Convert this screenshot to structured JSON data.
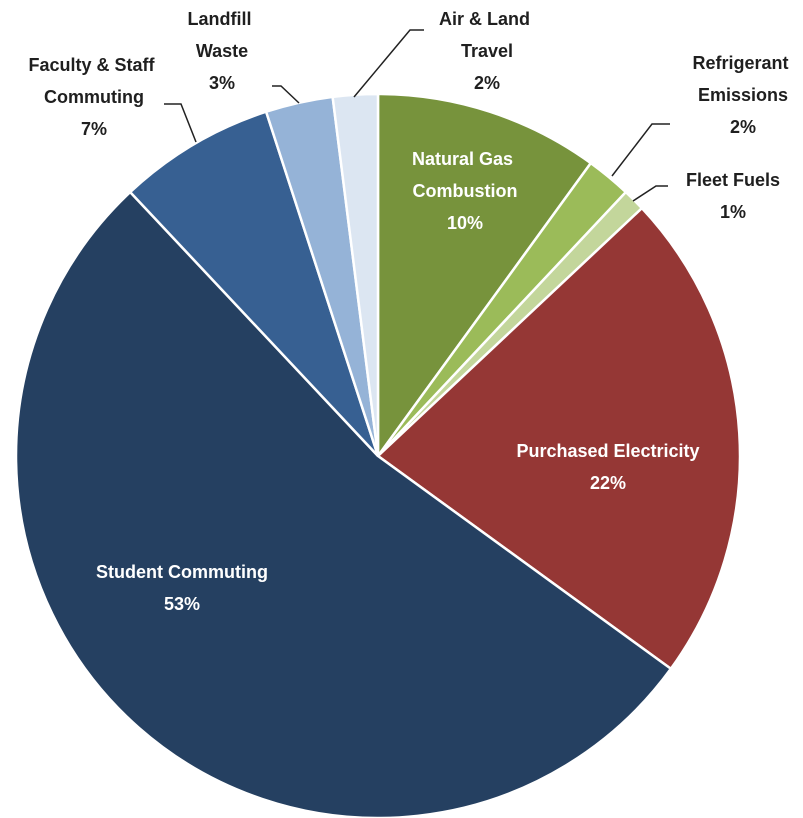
{
  "chart_data": {
    "type": "pie",
    "categories": [
      "Natural Gas Combustion",
      "Refrigerant Emissions",
      "Fleet Fuels",
      "Purchased Electricity",
      "Student Commuting",
      "Faculty & Staff Commuting",
      "Landfill Waste",
      "Air & Land Travel"
    ],
    "values": [
      10,
      2,
      1,
      22,
      53,
      7,
      3,
      2
    ],
    "value_labels": [
      "10%",
      "2%",
      "1%",
      "22%",
      "53%",
      "7%",
      "3%",
      "2%"
    ],
    "colors": [
      "#77933c",
      "#9bbb59",
      "#c3d69b",
      "#953735",
      "#254061",
      "#376092",
      "#95b3d7",
      "#dce6f2"
    ]
  }
}
